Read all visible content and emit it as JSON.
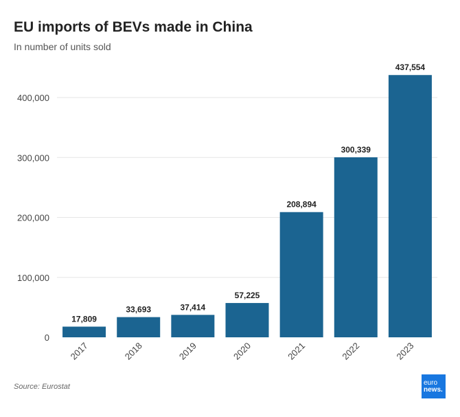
{
  "title": "EU imports of BEVs made in China",
  "subtitle": "In number of units sold",
  "source": "Source: Eurostat",
  "logo": {
    "line1": "euro",
    "line2": "news."
  },
  "colors": {
    "bar": "#1b6491",
    "grid": "#e6e6e6",
    "logo_bg": "#1877e0"
  },
  "chart_data": {
    "type": "bar",
    "title": "EU imports of BEVs made in China",
    "subtitle": "In number of units sold",
    "xlabel": "",
    "ylabel": "",
    "categories": [
      "2017",
      "2018",
      "2019",
      "2020",
      "2021",
      "2022",
      "2023"
    ],
    "values": [
      17809,
      33693,
      37414,
      57225,
      208894,
      300339,
      437554
    ],
    "value_labels": [
      "17,809",
      "33,693",
      "37,414",
      "57,225",
      "208,894",
      "300,339",
      "437,554"
    ],
    "ylim": [
      0,
      458000
    ],
    "yticks": [
      0,
      100000,
      200000,
      300000,
      400000
    ],
    "ytick_labels": [
      "0",
      "100,000",
      "200,000",
      "300,000",
      "400,000"
    ],
    "grid": true,
    "legend": "none"
  }
}
